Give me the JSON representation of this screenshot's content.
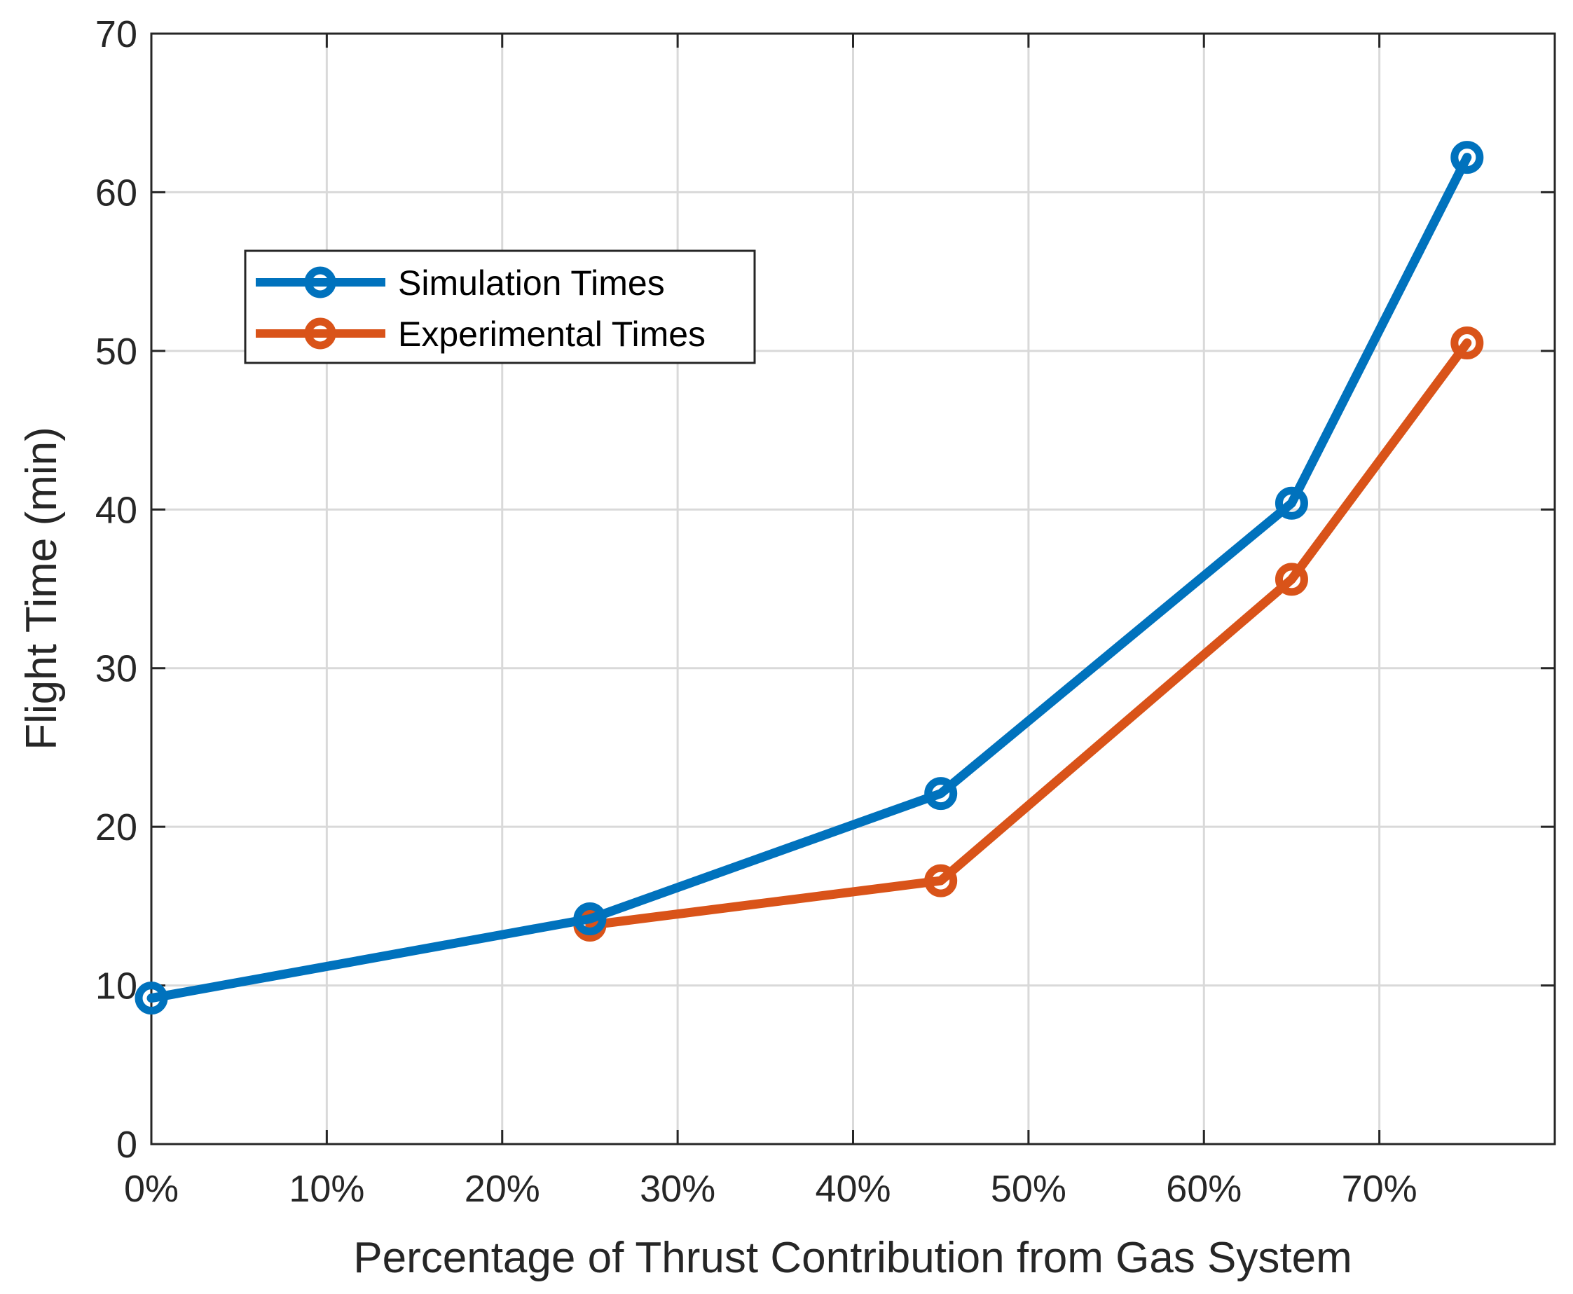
{
  "chart_data": {
    "type": "line",
    "title": "",
    "xlabel": "Percentage of Thrust Contribution from Gas System",
    "ylabel": "Flight Time (min)",
    "xlim": [
      0,
      80
    ],
    "ylim": [
      0,
      70
    ],
    "grid": true,
    "legend_position": "top-left",
    "x_ticks": [
      {
        "value": 0,
        "label": "0%"
      },
      {
        "value": 10,
        "label": "10%"
      },
      {
        "value": 20,
        "label": "20%"
      },
      {
        "value": 30,
        "label": "30%"
      },
      {
        "value": 40,
        "label": "40%"
      },
      {
        "value": 50,
        "label": "50%"
      },
      {
        "value": 60,
        "label": "60%"
      },
      {
        "value": 70,
        "label": "70%"
      }
    ],
    "y_ticks": [
      {
        "value": 0,
        "label": "0"
      },
      {
        "value": 10,
        "label": "10"
      },
      {
        "value": 20,
        "label": "20"
      },
      {
        "value": 30,
        "label": "30"
      },
      {
        "value": 40,
        "label": "40"
      },
      {
        "value": 50,
        "label": "50"
      },
      {
        "value": 60,
        "label": "60"
      },
      {
        "value": 70,
        "label": "70"
      }
    ],
    "series": [
      {
        "name": "Simulation Times",
        "color": "#0072BD",
        "x": [
          0,
          25,
          45,
          65,
          75
        ],
        "y": [
          9.2,
          14.2,
          22.1,
          40.4,
          62.2
        ]
      },
      {
        "name": "Experimental Times",
        "color": "#D95319",
        "x": [
          25,
          45,
          65,
          75
        ],
        "y": [
          13.8,
          16.6,
          35.6,
          50.5
        ]
      }
    ]
  }
}
